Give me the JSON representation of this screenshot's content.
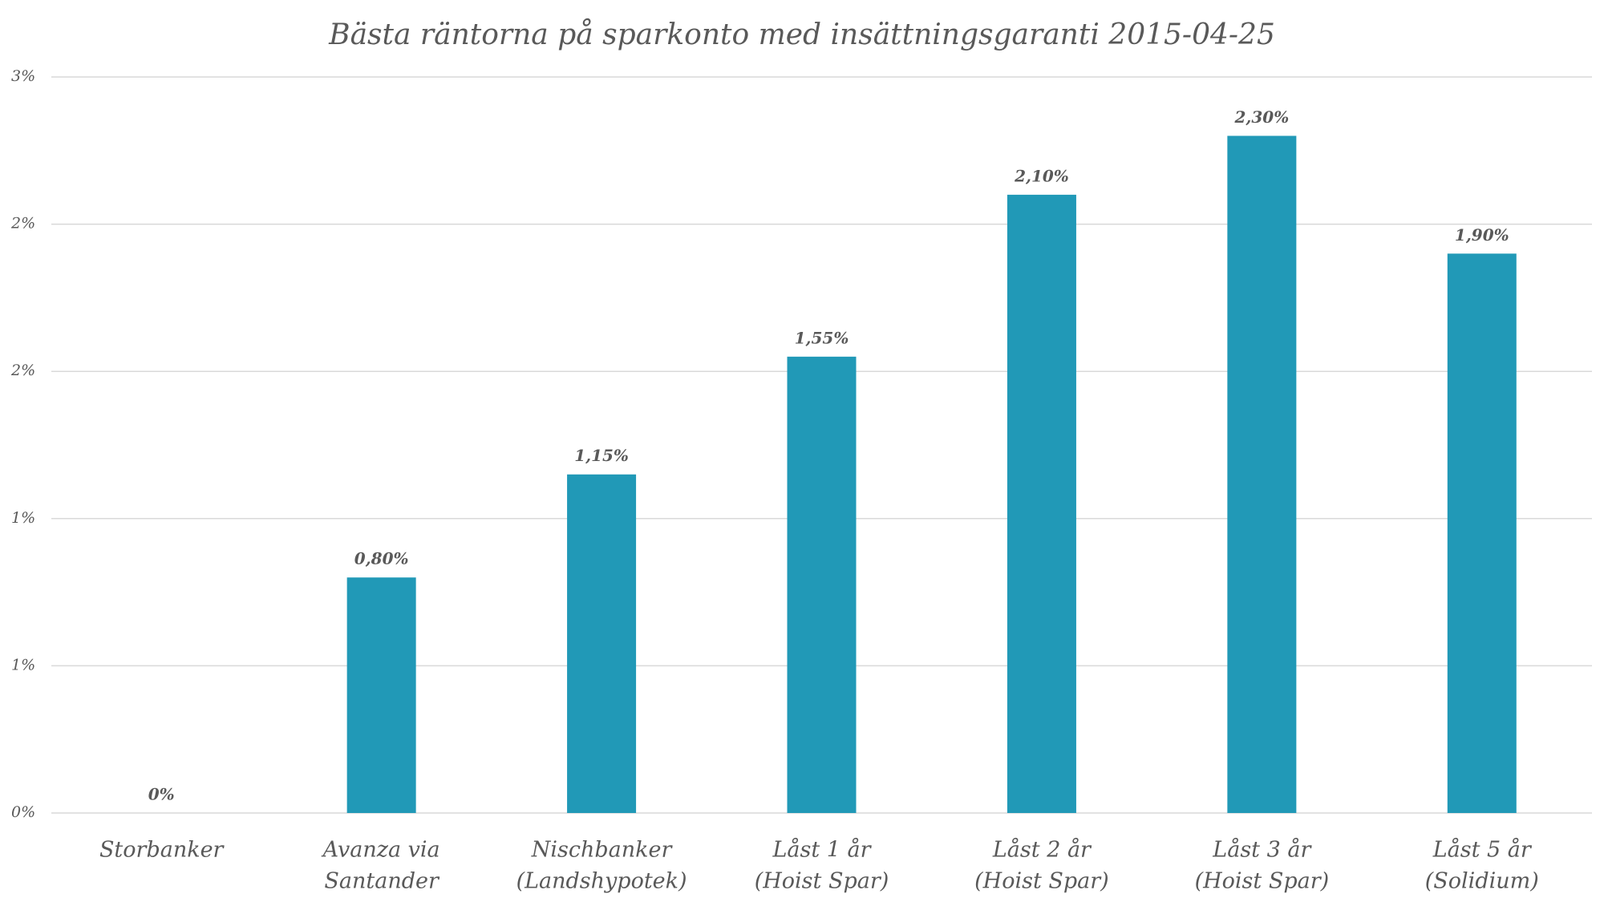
{
  "chart_data": {
    "type": "bar",
    "title": "Bästa räntorna på sparkonto med insättningsgaranti 2015-04-25",
    "categories": [
      [
        "Storbanker"
      ],
      [
        "Avanza via",
        "Santander"
      ],
      [
        "Nischbanker",
        "(Landshypotek)"
      ],
      [
        "Låst 1 år",
        "(Hoist Spar)"
      ],
      [
        "Låst 2 år",
        "(Hoist Spar)"
      ],
      [
        "Låst 3 år",
        "(Hoist Spar)"
      ],
      [
        "Låst 5 år",
        "(Solidium)"
      ]
    ],
    "values": [
      0,
      0.8,
      1.15,
      1.55,
      2.1,
      2.3,
      1.9
    ],
    "value_labels": [
      "0%",
      "0,80%",
      "1,15%",
      "1,55%",
      "2,10%",
      "2,30%",
      "1,90%"
    ],
    "color": "#2199b7",
    "ylim": [
      0,
      2.5
    ],
    "yticks": [
      {
        "value": 0,
        "label": "0%"
      },
      {
        "value": 0.5,
        "label": "1%"
      },
      {
        "value": 1,
        "label": "1%"
      },
      {
        "value": 1.5,
        "label": "2%"
      },
      {
        "value": 2,
        "label": "2%"
      },
      {
        "value": 2.5,
        "label": "3%"
      }
    ],
    "grid": true
  }
}
